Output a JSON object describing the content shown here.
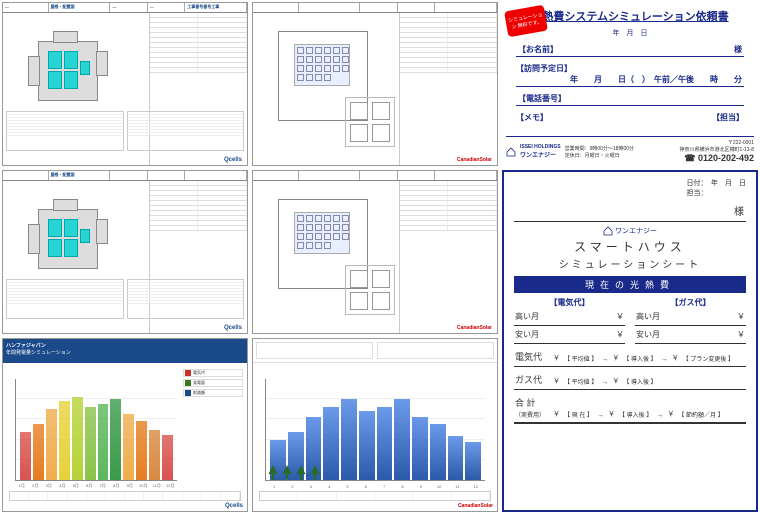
{
  "tech_sheets": {
    "brand_qcells": "Qcells",
    "brand_cs": "CanadianSolar",
    "title_cells": [
      "—",
      "屋根・配置図",
      "—",
      "—",
      "工事番号番号工事"
    ],
    "panel_color": "#2ad4d4"
  },
  "chart_qcells": {
    "header1": "ハンファジャパン",
    "header2": "年間発電量シミュレーション",
    "legend": [
      {
        "label": "電気代",
        "color": "#c9302c"
      },
      {
        "label": "発電量",
        "color": "#3a7a1a"
      },
      {
        "label": "削減額",
        "color": "#1a4a8a"
      }
    ],
    "bars": [
      {
        "v": 48,
        "c": "#d9534f"
      },
      {
        "v": 55,
        "c": "#e67e22"
      },
      {
        "v": 70,
        "c": "#f0ad4e"
      },
      {
        "v": 78,
        "c": "#e8d23a"
      },
      {
        "v": 82,
        "c": "#b8d23a"
      },
      {
        "v": 72,
        "c": "#8bc34a"
      },
      {
        "v": 75,
        "c": "#5cb85c"
      },
      {
        "v": 80,
        "c": "#3a9a4a"
      },
      {
        "v": 65,
        "c": "#f0ad4e"
      },
      {
        "v": 58,
        "c": "#e67e22"
      },
      {
        "v": 50,
        "c": "#d9893f"
      },
      {
        "v": 45,
        "c": "#d9534f"
      }
    ],
    "xlabels": [
      "1月",
      "2月",
      "3月",
      "4月",
      "5月",
      "6月",
      "7月",
      "8月",
      "9月",
      "10月",
      "11月",
      "12月"
    ],
    "logo": "Qcells"
  },
  "chart_cs": {
    "bars": [
      {
        "v": 40
      },
      {
        "v": 48
      },
      {
        "v": 62
      },
      {
        "v": 72
      },
      {
        "v": 80
      },
      {
        "v": 68
      },
      {
        "v": 72
      },
      {
        "v": 80
      },
      {
        "v": 62
      },
      {
        "v": 55
      },
      {
        "v": 44
      },
      {
        "v": 38
      }
    ],
    "bar_color": "#3a6fc4",
    "xlabels": [
      "1",
      "2",
      "3",
      "4",
      "5",
      "6",
      "7",
      "8",
      "9",
      "10",
      "11",
      "12"
    ],
    "tree_color": "#2a6a2a",
    "logo": "CanadianSolar"
  },
  "form1": {
    "stamp": "シミュレーション 無料です。",
    "title": "光熱費システムシミュレーション依頼書",
    "date": "年　月　日",
    "name_label": "【お名前】",
    "name_suffix": "様",
    "visit_label": "【訪問予定日】",
    "visit_value": "年　　月　　日（　）　午前／午後　　時　　分",
    "tel_label": "【電話番号】",
    "memo_label": "【メモ】",
    "tantou_label": "【担当】",
    "footer": {
      "zip": "〒222-0001",
      "addr": "神奈川県横浜市港北区樽町1-13-8",
      "company": "ワンエナジー",
      "hours": "営業時間：9時00分～18時00分",
      "holiday": "定休日：月曜日・火曜日",
      "tel": "0120-202-492"
    }
  },
  "form2": {
    "date_label": "日付：　年　月　日",
    "tantou": "担当：",
    "name_suffix": "様",
    "company": "ワンエナジー",
    "h1": "スマートハウス",
    "h2": "シミュレーションシート",
    "band": "現在の光熱費",
    "col_elec": "【電気代】",
    "col_gas": "【ガス代】",
    "high_label": "高い月",
    "low_label": "安い月",
    "yen": "￥",
    "elec_label": "電気代",
    "gas_label": "ガス代",
    "total_label": "合 計",
    "sub_avg": "【 平均値 】",
    "sub_after": "【 導入後 】",
    "sub_plan": "【 プラン変更後 】",
    "sub_now": "【 現 在 】",
    "sub_save": "【 節約額／月 】",
    "arrow": "→",
    "sub_real": "（実費用）"
  }
}
